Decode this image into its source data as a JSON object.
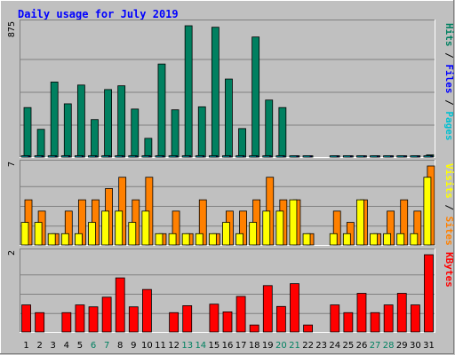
{
  "chart_data": {
    "type": "bar",
    "title": "Daily usage for July 2019",
    "categories": [
      "1",
      "2",
      "3",
      "4",
      "5",
      "6",
      "7",
      "8",
      "9",
      "10",
      "11",
      "12",
      "13",
      "14",
      "15",
      "16",
      "17",
      "18",
      "19",
      "20",
      "21",
      "22",
      "23",
      "24",
      "25",
      "26",
      "27",
      "28",
      "29",
      "30",
      "31"
    ],
    "weekend_days": [
      "6",
      "7",
      "13",
      "14",
      "20",
      "21",
      "27",
      "28"
    ],
    "grid": true,
    "panels": [
      {
        "id": "hits",
        "ymax": 875,
        "ymax_label": "875",
        "side_label": [
          {
            "text": "Pages",
            "color": "#00c0d0"
          },
          {
            "text": "Files",
            "color": "#0000ff"
          },
          {
            "text": "Hits",
            "color": "#008060"
          }
        ],
        "series": [
          {
            "name": "Hits",
            "color": "#008060",
            "values": [
              330,
              185,
              500,
              355,
              480,
              250,
              450,
              475,
              320,
              125,
              620,
              315,
              875,
              335,
              865,
              520,
              190,
              800,
              380,
              330,
              5,
              5,
              0,
              5,
              5,
              5,
              5,
              5,
              5,
              5,
              15
            ]
          },
          {
            "name": "Files",
            "color": "#0000ff",
            "values": [
              4,
              4,
              4,
              4,
              4,
              4,
              4,
              4,
              4,
              4,
              4,
              4,
              4,
              4,
              4,
              4,
              4,
              4,
              4,
              4,
              4,
              4,
              0,
              4,
              4,
              4,
              4,
              4,
              4,
              4,
              4
            ]
          },
          {
            "name": "Pages",
            "color": "#00c0d0",
            "values": [
              2,
              2,
              2,
              2,
              2,
              2,
              2,
              2,
              2,
              2,
              2,
              2,
              2,
              2,
              2,
              2,
              2,
              2,
              2,
              2,
              2,
              2,
              0,
              2,
              2,
              2,
              2,
              2,
              2,
              2,
              2
            ]
          }
        ]
      },
      {
        "id": "visits",
        "ymax": 7,
        "ymax_label": "7",
        "side_label": [
          {
            "text": "Sites",
            "color": "#ff8000"
          },
          {
            "text": "Visits",
            "color": "#ffff00"
          }
        ],
        "series": [
          {
            "name": "Visits",
            "color": "#ff8000",
            "values": [
              4,
              3,
              1,
              3,
              4,
              4,
              5,
              6,
              4,
              6,
              1,
              3,
              1,
              4,
              1,
              3,
              3,
              4,
              6,
              4,
              4,
              1,
              0,
              3,
              2,
              4,
              1,
              3,
              4,
              3,
              7
            ]
          },
          {
            "name": "Sites",
            "color": "#ffff00",
            "values": [
              2,
              2,
              1,
              1,
              1,
              2,
              3,
              3,
              2,
              3,
              1,
              1,
              1,
              1,
              1,
              2,
              1,
              2,
              3,
              3,
              4,
              1,
              0,
              1,
              1,
              4,
              1,
              1,
              1,
              1,
              6
            ]
          }
        ]
      },
      {
        "id": "kbytes",
        "ymax": 2,
        "ymax_label": "2",
        "side_label": [
          {
            "text": "KBytes",
            "color": "#ff0000"
          }
        ],
        "series": [
          {
            "name": "KBytes",
            "color": "#ff0000",
            "values": [
              0.7,
              0.5,
              0,
              0.5,
              0.7,
              0.65,
              0.9,
              1.4,
              0.65,
              1.1,
              0,
              0.5,
              0.68,
              0,
              0.72,
              0.52,
              0.92,
              0.18,
              1.2,
              0.66,
              1.25,
              0.18,
              0,
              0.7,
              0.5,
              1.0,
              0.5,
              0.7,
              1.0,
              0.7,
              2.0
            ]
          }
        ]
      }
    ]
  }
}
